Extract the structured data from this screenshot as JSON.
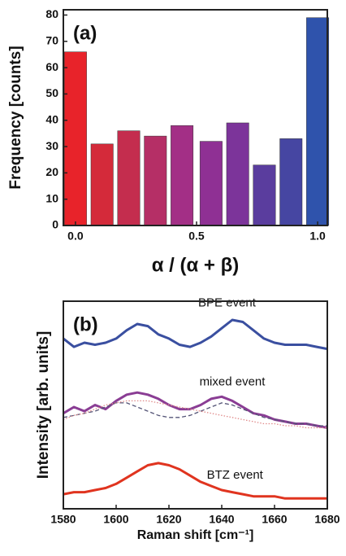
{
  "chart_data": [
    {
      "type": "bar",
      "panel_label": "(a)",
      "x_label": "α / (α + β)",
      "y_label": "Frequency [counts]",
      "x": [
        0,
        0.11,
        0.22,
        0.33,
        0.44,
        0.56,
        0.67,
        0.78,
        0.89,
        1.0
      ],
      "values": [
        66,
        31,
        36,
        34,
        38,
        32,
        39,
        23,
        33,
        79
      ],
      "colors": [
        "#e8232a",
        "#d42a3a",
        "#c42d4e",
        "#b52f66",
        "#a32f86",
        "#8f3094",
        "#7c349a",
        "#5a3d9e",
        "#4646a2",
        "#2f53ac"
      ],
      "xlim": [
        -0.05,
        1.04
      ],
      "ylim": [
        0,
        82
      ],
      "xticks": [
        {
          "value": 0,
          "label": "0.0"
        },
        0.5,
        {
          "value": 1,
          "label": "1.0"
        }
      ],
      "yticks": [
        0,
        10,
        20,
        30,
        40,
        50,
        60,
        70,
        80
      ]
    },
    {
      "type": "line",
      "panel_label": "(b)",
      "x_label": "Raman shift [cm⁻¹]",
      "y_label": "Intensity [arb. units]",
      "x": [
        1580,
        1584,
        1588,
        1592,
        1596,
        1600,
        1604,
        1608,
        1612,
        1616,
        1620,
        1624,
        1628,
        1632,
        1636,
        1640,
        1644,
        1648,
        1652,
        1656,
        1660,
        1664,
        1668,
        1672,
        1676,
        1680
      ],
      "xlim": [
        1580,
        1680
      ],
      "ylim": [
        0,
        10
      ],
      "xticks": [
        1580,
        1600,
        1620,
        1640,
        1660,
        1680
      ],
      "series": [
        {
          "name": "BPE event",
          "color": "#3a4fa0",
          "style": "solid",
          "values": [
            8.2,
            7.8,
            8.0,
            7.9,
            8.0,
            8.2,
            8.6,
            8.9,
            8.8,
            8.4,
            8.2,
            7.9,
            7.8,
            8.0,
            8.3,
            8.7,
            9.1,
            9.0,
            8.6,
            8.2,
            8.0,
            7.9,
            7.9,
            7.9,
            7.8,
            7.7
          ]
        },
        {
          "name": "mixed event",
          "color": "#8a3d94",
          "style": "solid",
          "values": [
            4.6,
            4.9,
            4.7,
            5.0,
            4.8,
            5.2,
            5.5,
            5.6,
            5.5,
            5.3,
            5.0,
            4.8,
            4.8,
            5.0,
            5.3,
            5.4,
            5.2,
            4.9,
            4.6,
            4.5,
            4.3,
            4.2,
            4.1,
            4.1,
            4.0,
            3.9
          ]
        },
        {
          "color": "#555577",
          "style": "dashed",
          "values": [
            4.4,
            4.5,
            4.6,
            4.7,
            4.9,
            5.1,
            5.1,
            4.9,
            4.7,
            4.5,
            4.4,
            4.4,
            4.5,
            4.7,
            4.9,
            5.1,
            5.0,
            4.8,
            4.6,
            4.4,
            4.3,
            4.2,
            4.1,
            4.1,
            4.0,
            4.0
          ]
        },
        {
          "color": "#e08a8a",
          "style": "dotted",
          "values": [
            4.3,
            4.5,
            4.6,
            4.8,
            5.0,
            5.1,
            5.2,
            5.2,
            5.2,
            5.1,
            5.0,
            4.9,
            4.8,
            4.7,
            4.6,
            4.5,
            4.4,
            4.3,
            4.2,
            4.1,
            4.1,
            4.0,
            4.0,
            3.9,
            3.9,
            3.9
          ]
        },
        {
          "name": "BTZ event",
          "color": "#e0341f",
          "style": "solid",
          "values": [
            0.7,
            0.8,
            0.8,
            0.9,
            1.0,
            1.2,
            1.5,
            1.8,
            2.1,
            2.2,
            2.1,
            1.9,
            1.6,
            1.3,
            1.1,
            0.9,
            0.8,
            0.7,
            0.6,
            0.6,
            0.6,
            0.5,
            0.5,
            0.5,
            0.5,
            0.5
          ]
        }
      ]
    }
  ]
}
